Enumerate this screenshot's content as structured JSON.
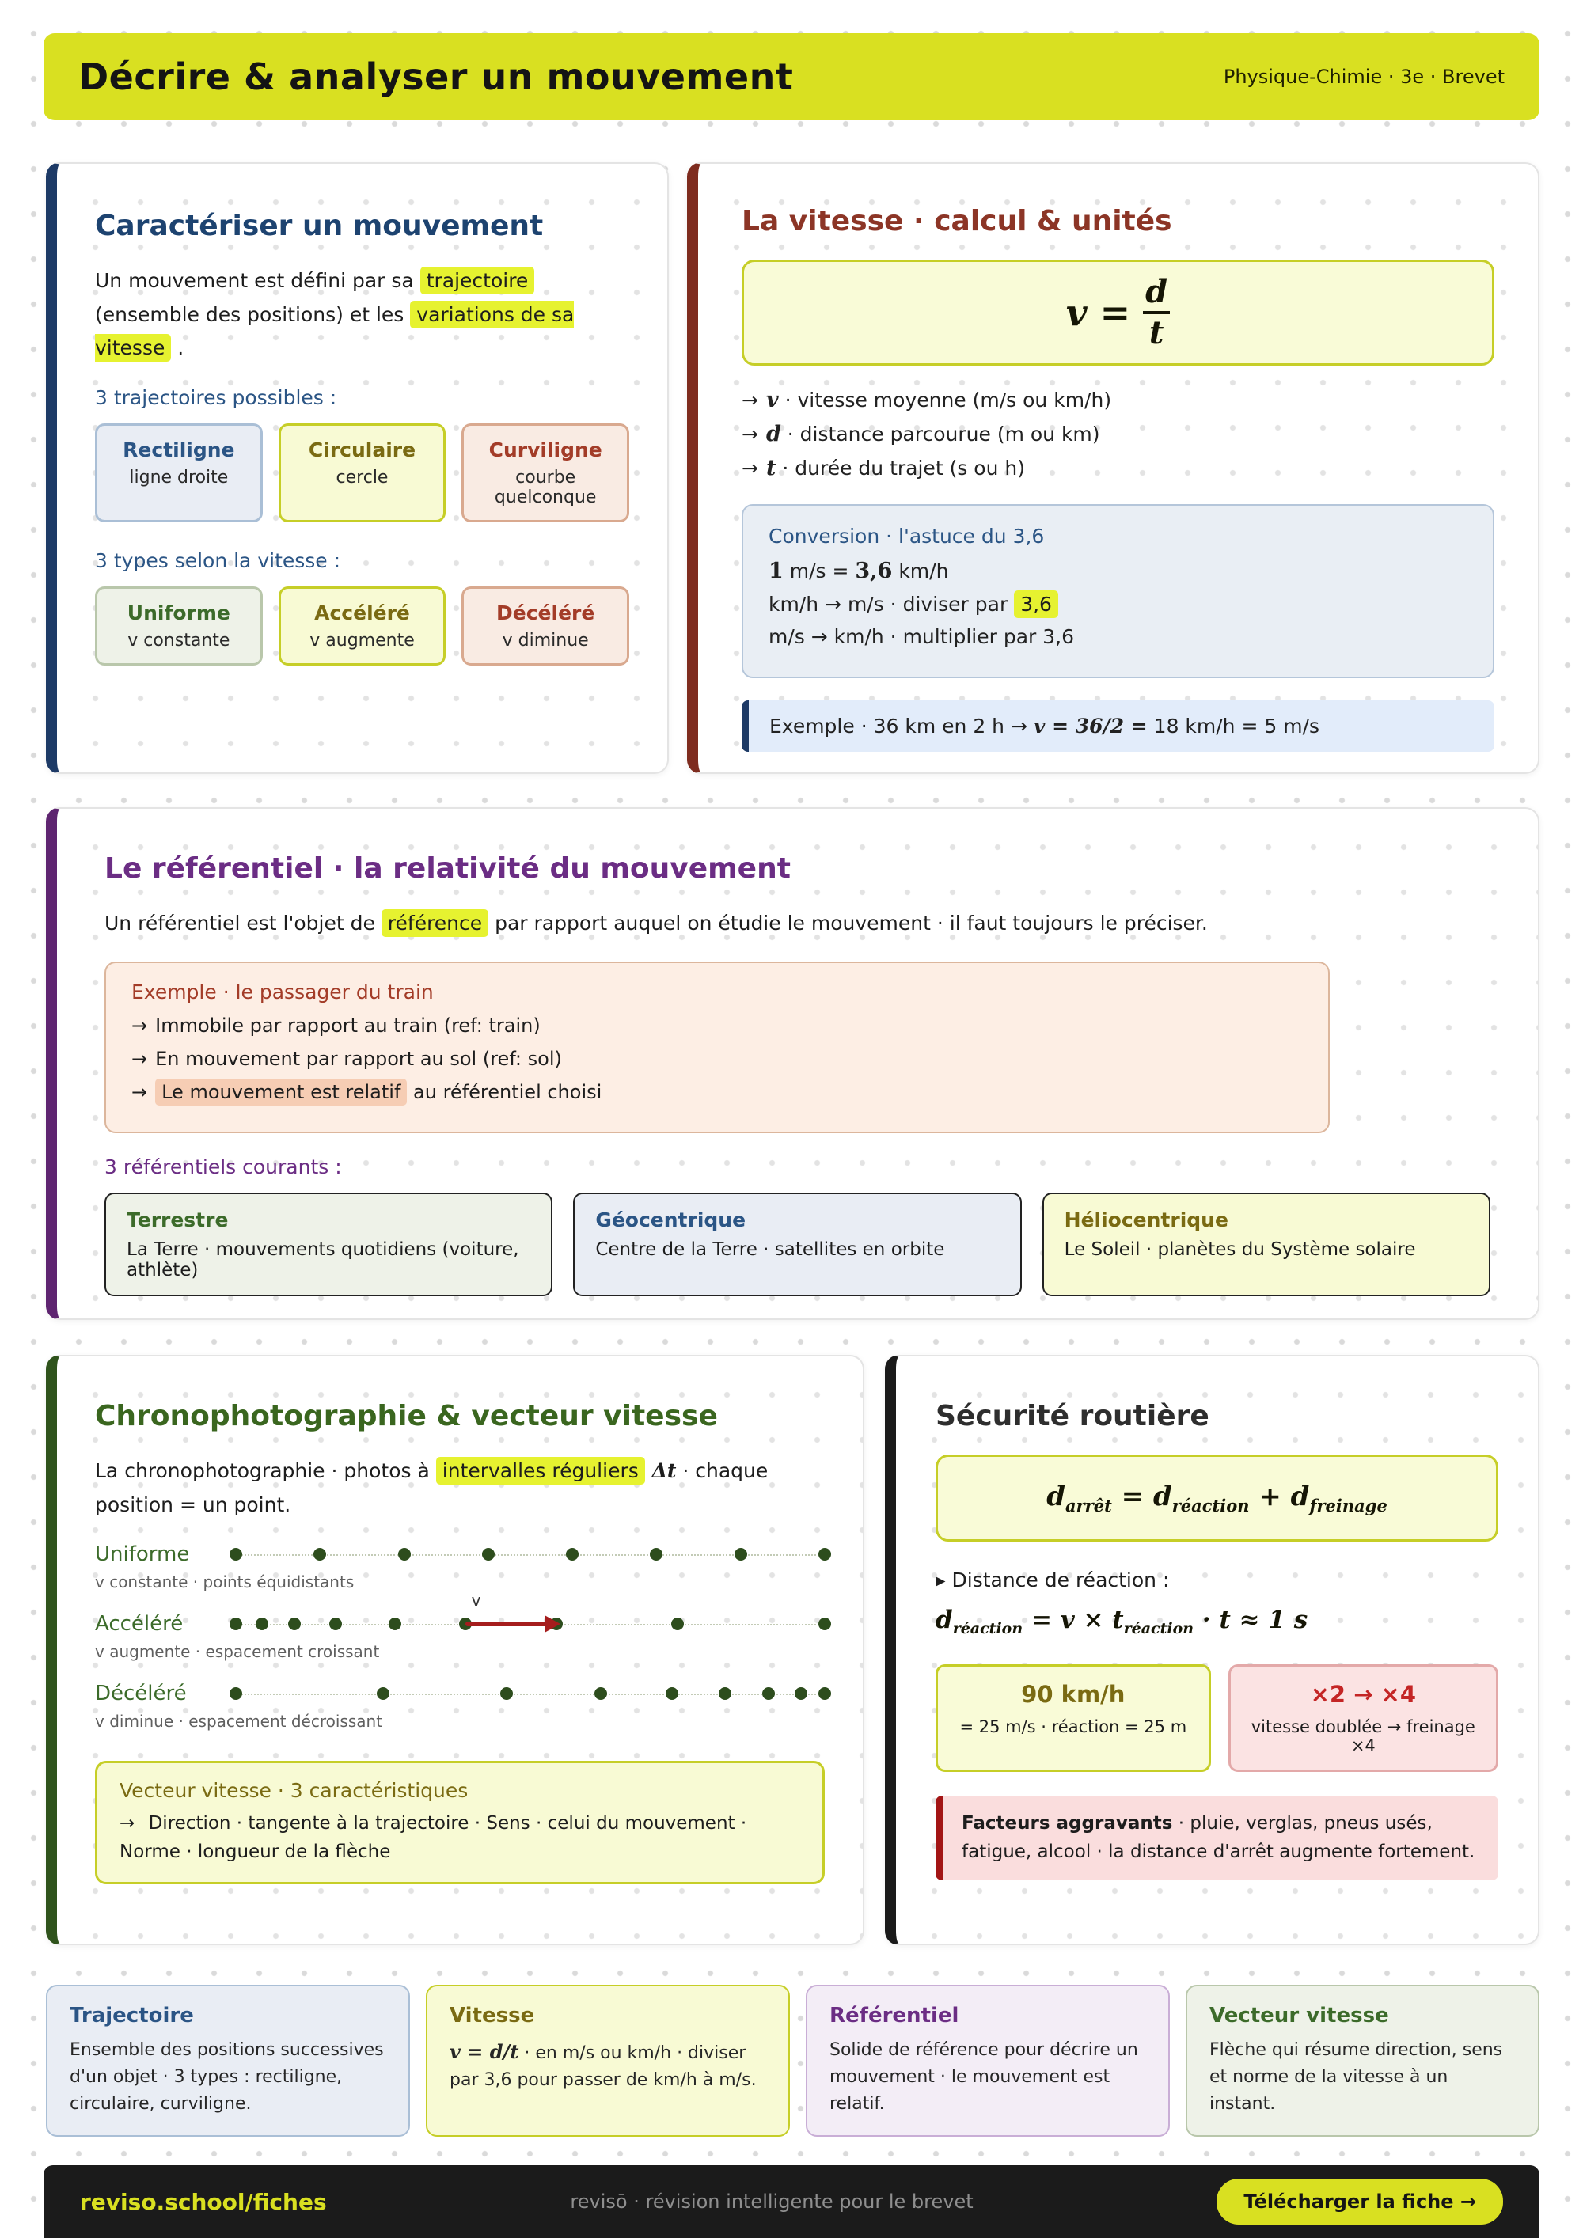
{
  "colors": {
    "accent_yellow": "#d9e021",
    "highlight": "#e6f230",
    "navy": "#1d3a66",
    "maroon": "#8c3526",
    "purple": "#6b2d84",
    "green": "#3a661f",
    "red": "#a51d1d",
    "dark": "#1b1b1b"
  },
  "header": {
    "title": "Décrire & analyser un mouvement",
    "meta": "Physique-Chimie · 3e · Brevet"
  },
  "caracteriser": {
    "title": "Caractériser un mouvement",
    "intro": {
      "a": "Un mouvement est défini par sa ",
      "hl1": "trajectoire",
      "b": " (ensemble des positions) et les ",
      "hl2": "variations de sa vitesse",
      "c": " ."
    },
    "traj_label": "3 trajectoires possibles :",
    "trajectoires": [
      {
        "title": "Rectiligne",
        "text": "ligne droite"
      },
      {
        "title": "Circulaire",
        "text": "cercle"
      },
      {
        "title": "Curviligne",
        "text": "courbe quelconque"
      }
    ],
    "types_label": "3 types selon la vitesse :",
    "types": [
      {
        "title": "Uniforme",
        "text": "v constante"
      },
      {
        "title": "Accéléré",
        "text": "v augmente"
      },
      {
        "title": "Décéléré",
        "text": "v diminue"
      }
    ]
  },
  "vitesse": {
    "title": "La vitesse · calcul & unités",
    "formula": {
      "lhs": "v =",
      "num": "d",
      "den": "t"
    },
    "bullets": [
      {
        "arrow": "→",
        "var": "v",
        "text": " · vitesse moyenne (m/s ou km/h)"
      },
      {
        "arrow": "→",
        "var": "d",
        "text": " · distance parcourue (m ou km)"
      },
      {
        "arrow": "→",
        "var": "t",
        "text": " · durée du trajet (s ou h)"
      }
    ],
    "conversion": {
      "title": "Conversion · l'astuce du 3,6",
      "line1_a": "1",
      "line1_b": " m/s = ",
      "line1_c": "3,6",
      "line1_d": " km/h",
      "line2_a": "km/h → m/s · diviser par ",
      "line2_hl": "3,6",
      "line3": "m/s → km/h · multiplier par 3,6"
    },
    "exemple": {
      "label": "Exemple",
      "a": " · 36 km en 2 h → ",
      "math": "v = 36/2 =",
      "b": " 18 km/h = 5 m/s"
    }
  },
  "referentiel": {
    "title": "Le référentiel · la relativité du mouvement",
    "intro": {
      "a": "Un référentiel est l'objet de ",
      "hl": "référence",
      "b": " par rapport auquel on étudie le mouvement · il faut toujours le préciser."
    },
    "exemple": {
      "title": "Exemple · le passager du train",
      "arrow": "→",
      "item1": "Immobile par rapport au train (ref: train)",
      "item2": "En mouvement par rapport au sol (ref: sol)",
      "item3_hl": "Le mouvement est relatif",
      "item3_b": " au référentiel choisi"
    },
    "label": "3 référentiels courants :",
    "frames": [
      {
        "title": "Terrestre",
        "text": "La Terre · mouvements quotidiens (voiture, athlète)"
      },
      {
        "title": "Géocentrique",
        "text": "Centre de la Terre · satellites en orbite"
      },
      {
        "title": "Héliocentrique",
        "text": "Le Soleil · planètes du Système solaire"
      }
    ]
  },
  "chrono": {
    "title": "Chronophotographie & vecteur vitesse",
    "intro": {
      "a": "La chronophotographie · photos à ",
      "hl": "intervalles réguliers",
      "delta": " Δt",
      "b": " · chaque position = un point."
    },
    "rows": [
      {
        "label": "Uniforme",
        "caption": "v constante · points équidistants",
        "dots": [
          0,
          14.3,
          28.6,
          42.9,
          57.1,
          71.4,
          85.7,
          100
        ]
      },
      {
        "label": "Accéléré",
        "caption": "v augmente · espacement croissant",
        "dots": [
          0,
          4.5,
          10,
          17,
          27,
          39,
          54.5,
          75,
          100
        ],
        "arrow": {
          "from": 39,
          "to": 53,
          "label": "v"
        }
      },
      {
        "label": "Décéléré",
        "caption": "v diminue · espacement décroissant",
        "dots": [
          0,
          25,
          46,
          62,
          74,
          83,
          90.5,
          96,
          100
        ]
      }
    ],
    "vector_box": {
      "title": "Vecteur vitesse · 3 caractéristiques",
      "arrow": "→",
      "text": " Direction · tangente à la trajectoire · Sens · celui du mouvement · Norme · longueur de la flèche"
    }
  },
  "securite": {
    "title": "Sécurité routière",
    "formula": {
      "d1": "d",
      "s1": "arrêt",
      "eq": " = ",
      "d2": "d",
      "s2": "réaction",
      "plus": " + ",
      "d3": "d",
      "s3": "freinage"
    },
    "reaction_label": "▸ Distance de réaction :",
    "reaction": {
      "d": "d",
      "dsub": "réaction",
      "mid": " = v × t",
      "tsub": "réaction",
      "tail": " · t ≈ 1 s"
    },
    "speed_box": {
      "title": "90 km/h",
      "text": "= 25 m/s · réaction = 25 m"
    },
    "double_box": {
      "title": "×2 → ×4",
      "text": "vitesse doublée → freinage ×4"
    },
    "warning": {
      "strong": "Facteurs aggravants",
      "text": " · pluie, verglas, pneus usés, fatigue, alcool · la distance d'arrêt augmente fortement."
    }
  },
  "glossary": [
    {
      "title": "Trajectoire",
      "text": "Ensemble des positions successives d'un objet · 3 types : rectiligne, circulaire, curviligne."
    },
    {
      "title": "Vitesse",
      "math": "v = d/t",
      "text": " · en m/s ou km/h · diviser par 3,6 pour passer de km/h à m/s."
    },
    {
      "title": "Référentiel",
      "text": "Solide de référence pour décrire un mouvement · le mouvement est relatif."
    },
    {
      "title": "Vecteur vitesse",
      "text": "Flèche qui résume direction, sens et norme de la vitesse à un instant."
    }
  ],
  "footer": {
    "brand": "reviso.school/fiches",
    "tagline": "revisō · révision intelligente pour le brevet",
    "button": "Télécharger la fiche →"
  }
}
